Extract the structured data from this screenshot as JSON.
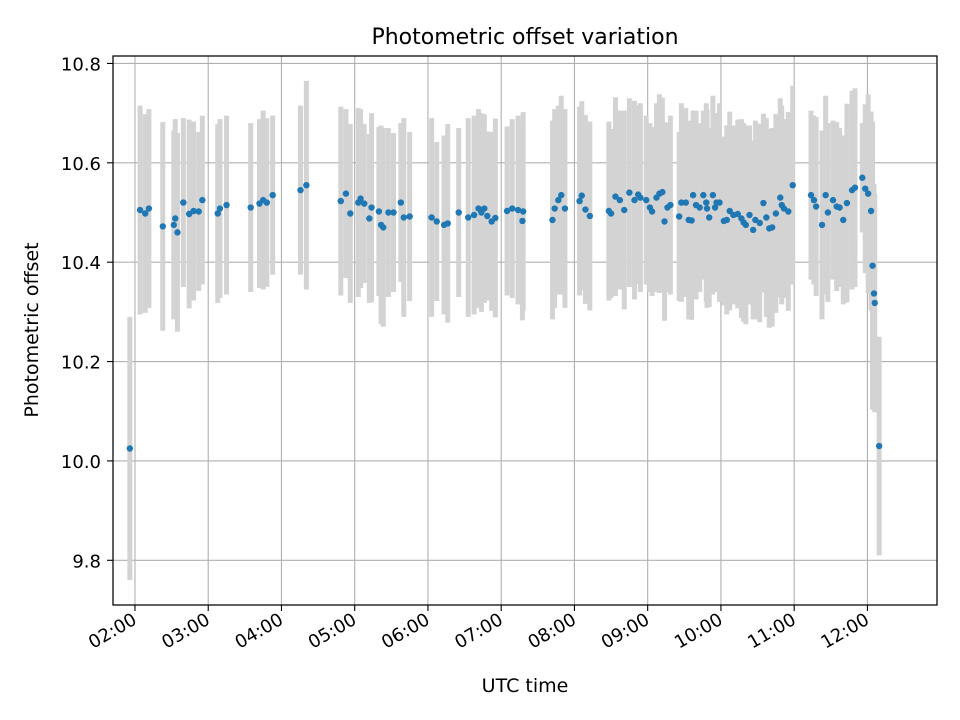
{
  "chart_data": {
    "type": "scatter",
    "title": "Photometric offset variation",
    "xlabel": "UTC time",
    "ylabel": "Photometric offset",
    "xlim": [
      1.7,
      12.95
    ],
    "ylim": [
      9.71,
      10.815
    ],
    "grid": true,
    "yticks": [
      9.8,
      10.0,
      10.2,
      10.4,
      10.6,
      10.8
    ],
    "ytick_labels": [
      "9.8",
      "10.0",
      "10.2",
      "10.4",
      "10.6",
      "10.8"
    ],
    "xticks": [
      2,
      3,
      4,
      5,
      6,
      7,
      8,
      9,
      10,
      11,
      12
    ],
    "xtick_labels": [
      "02:00",
      "03:00",
      "04:00",
      "05:00",
      "06:00",
      "07:00",
      "08:00",
      "09:00",
      "10:00",
      "11:00",
      "12:00"
    ],
    "marker_color": "#1f77b4",
    "errorbar_color": "#d3d3d3",
    "series": [
      {
        "name": "offset",
        "points": [
          [
            1.93,
            10.025,
            0.265
          ],
          [
            2.07,
            10.505,
            0.21
          ],
          [
            2.14,
            10.498,
            0.2
          ],
          [
            2.19,
            10.508,
            0.2
          ],
          [
            2.38,
            10.472,
            0.21
          ],
          [
            2.53,
            10.475,
            0.19
          ],
          [
            2.55,
            10.488,
            0.2
          ],
          [
            2.58,
            10.46,
            0.2
          ],
          [
            2.66,
            10.52,
            0.17
          ],
          [
            2.74,
            10.497,
            0.19
          ],
          [
            2.8,
            10.503,
            0.18
          ],
          [
            2.87,
            10.502,
            0.16
          ],
          [
            2.92,
            10.525,
            0.17
          ],
          [
            3.13,
            10.498,
            0.18
          ],
          [
            3.16,
            10.508,
            0.18
          ],
          [
            3.25,
            10.515,
            0.18
          ],
          [
            3.58,
            10.51,
            0.17
          ],
          [
            3.7,
            10.518,
            0.17
          ],
          [
            3.75,
            10.525,
            0.18
          ],
          [
            3.8,
            10.52,
            0.17
          ],
          [
            3.88,
            10.535,
            0.16
          ],
          [
            4.26,
            10.545,
            0.17
          ],
          [
            4.34,
            10.555,
            0.21
          ],
          [
            4.81,
            10.523,
            0.19
          ],
          [
            4.88,
            10.538,
            0.17
          ],
          [
            4.94,
            10.498,
            0.18
          ],
          [
            5.05,
            10.52,
            0.19
          ],
          [
            5.08,
            10.528,
            0.18
          ],
          [
            5.13,
            10.518,
            0.16
          ],
          [
            5.2,
            10.488,
            0.17
          ],
          [
            5.23,
            10.51,
            0.19
          ],
          [
            5.33,
            10.502,
            0.17
          ],
          [
            5.36,
            10.475,
            0.2
          ],
          [
            5.39,
            10.47,
            0.2
          ],
          [
            5.46,
            10.5,
            0.17
          ],
          [
            5.53,
            10.5,
            0.16
          ],
          [
            5.63,
            10.52,
            0.16
          ],
          [
            5.67,
            10.49,
            0.2
          ],
          [
            5.75,
            10.492,
            0.17
          ],
          [
            6.05,
            10.49,
            0.2
          ],
          [
            6.12,
            10.482,
            0.16
          ],
          [
            6.22,
            10.475,
            0.18
          ],
          [
            6.27,
            10.478,
            0.2
          ],
          [
            6.42,
            10.5,
            0.17
          ],
          [
            6.55,
            10.49,
            0.2
          ],
          [
            6.63,
            10.495,
            0.2
          ],
          [
            6.69,
            10.508,
            0.2
          ],
          [
            6.73,
            10.5,
            0.2
          ],
          [
            6.77,
            10.508,
            0.19
          ],
          [
            6.81,
            10.493,
            0.17
          ],
          [
            6.87,
            10.482,
            0.18
          ],
          [
            6.92,
            10.489,
            0.2
          ],
          [
            7.08,
            10.503,
            0.17
          ],
          [
            7.15,
            10.508,
            0.18
          ],
          [
            7.23,
            10.505,
            0.19
          ],
          [
            7.29,
            10.483,
            0.2
          ],
          [
            7.3,
            10.502,
            0.2
          ],
          [
            7.7,
            10.485,
            0.2
          ],
          [
            7.73,
            10.508,
            0.2
          ],
          [
            7.78,
            10.525,
            0.19
          ],
          [
            7.82,
            10.535,
            0.2
          ],
          [
            7.87,
            10.508,
            0.2
          ],
          [
            8.07,
            10.523,
            0.19
          ],
          [
            8.1,
            10.534,
            0.19
          ],
          [
            8.15,
            10.506,
            0.19
          ],
          [
            8.21,
            10.493,
            0.19
          ],
          [
            8.47,
            10.503,
            0.18
          ],
          [
            8.5,
            10.498,
            0.17
          ],
          [
            8.56,
            10.532,
            0.2
          ],
          [
            8.62,
            10.525,
            0.18
          ],
          [
            8.68,
            10.505,
            0.2
          ],
          [
            8.75,
            10.54,
            0.19
          ],
          [
            8.82,
            10.525,
            0.2
          ],
          [
            8.87,
            10.536,
            0.18
          ],
          [
            8.9,
            10.53,
            0.19
          ],
          [
            8.98,
            10.525,
            0.17
          ],
          [
            9.03,
            10.51,
            0.17
          ],
          [
            9.06,
            10.502,
            0.17
          ],
          [
            9.12,
            10.53,
            0.19
          ],
          [
            9.16,
            10.538,
            0.2
          ],
          [
            9.2,
            10.541,
            0.19
          ],
          [
            9.23,
            10.482,
            0.2
          ],
          [
            9.27,
            10.51,
            0.17
          ],
          [
            9.31,
            10.515,
            0.18
          ],
          [
            9.43,
            10.492,
            0.17
          ],
          [
            9.46,
            10.52,
            0.2
          ],
          [
            9.52,
            10.52,
            0.19
          ],
          [
            9.56,
            10.485,
            0.2
          ],
          [
            9.6,
            10.484,
            0.2
          ],
          [
            9.62,
            10.535,
            0.17
          ],
          [
            9.66,
            10.515,
            0.19
          ],
          [
            9.71,
            10.51,
            0.17
          ],
          [
            9.76,
            10.535,
            0.17
          ],
          [
            9.8,
            10.52,
            0.2
          ],
          [
            9.81,
            10.508,
            0.2
          ],
          [
            9.84,
            10.49,
            0.18
          ],
          [
            9.89,
            10.535,
            0.2
          ],
          [
            9.92,
            10.51,
            0.17
          ],
          [
            9.94,
            10.52,
            0.18
          ],
          [
            9.98,
            10.52,
            0.2
          ],
          [
            10.04,
            10.483,
            0.17
          ],
          [
            10.08,
            10.485,
            0.19
          ],
          [
            10.12,
            10.503,
            0.2
          ],
          [
            10.17,
            10.495,
            0.18
          ],
          [
            10.23,
            10.497,
            0.19
          ],
          [
            10.28,
            10.488,
            0.2
          ],
          [
            10.31,
            10.48,
            0.2
          ],
          [
            10.34,
            10.475,
            0.2
          ],
          [
            10.39,
            10.495,
            0.18
          ],
          [
            10.44,
            10.465,
            0.18
          ],
          [
            10.47,
            10.485,
            0.2
          ],
          [
            10.53,
            10.479,
            0.2
          ],
          [
            10.58,
            10.519,
            0.18
          ],
          [
            10.62,
            10.49,
            0.2
          ],
          [
            10.66,
            10.468,
            0.2
          ],
          [
            10.7,
            10.47,
            0.2
          ],
          [
            10.75,
            10.498,
            0.2
          ],
          [
            10.81,
            10.53,
            0.2
          ],
          [
            10.83,
            10.515,
            0.2
          ],
          [
            10.86,
            10.508,
            0.18
          ],
          [
            10.92,
            10.502,
            0.2
          ],
          [
            10.98,
            10.555,
            0.2
          ],
          [
            11.23,
            10.535,
            0.17
          ],
          [
            11.27,
            10.525,
            0.17
          ],
          [
            11.3,
            10.512,
            0.18
          ],
          [
            11.38,
            10.475,
            0.19
          ],
          [
            11.43,
            10.535,
            0.2
          ],
          [
            11.46,
            10.5,
            0.18
          ],
          [
            11.53,
            10.525,
            0.16
          ],
          [
            11.58,
            10.512,
            0.17
          ],
          [
            11.62,
            10.51,
            0.16
          ],
          [
            11.67,
            10.485,
            0.17
          ],
          [
            11.72,
            10.519,
            0.2
          ],
          [
            11.79,
            10.545,
            0.2
          ],
          [
            11.83,
            10.55,
            0.2
          ],
          [
            11.93,
            10.57,
            0.11
          ],
          [
            11.97,
            10.548,
            0.17
          ],
          [
            12.01,
            10.538,
            0.2
          ],
          [
            12.05,
            10.503,
            0.2
          ],
          [
            12.07,
            10.393,
            0.29
          ],
          [
            12.09,
            10.337,
            0.22
          ],
          [
            12.1,
            10.318,
            0.22
          ],
          [
            12.16,
            10.03,
            0.22
          ]
        ]
      }
    ]
  }
}
